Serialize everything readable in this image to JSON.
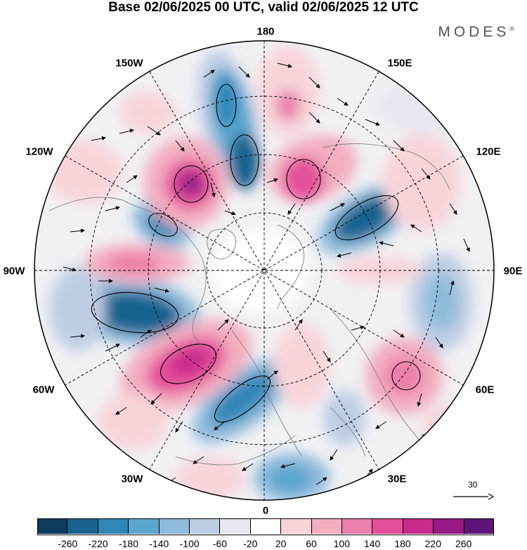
{
  "header": {
    "title": "Base 02/06/2025 00 UTC, valid 02/06/2025 12 UTC",
    "brand": "MODES",
    "brand_mark": "®"
  },
  "map": {
    "projection": "north-polar-stereographic",
    "longitude_labels": {
      "lon_180": "180",
      "lon_150w": "150W",
      "lon_150e": "150E",
      "lon_120w": "120W",
      "lon_120e": "120E",
      "lon_90w": "90W",
      "lon_90e": "90E",
      "lon_60w": "60W",
      "lon_60e": "60E",
      "lon_30w": "30W",
      "lon_30e": "30E",
      "lon_0": "0"
    },
    "wind_reference_vector": "30"
  },
  "colorbar": {
    "colors": [
      "#0f3b5c",
      "#19628f",
      "#2f86b8",
      "#5aa6cf",
      "#8fbbdc",
      "#bfcde4",
      "#e7e7f0",
      "#ffffff",
      "#f8d4d9",
      "#f3aec0",
      "#ec7fab",
      "#e4509a",
      "#c92a8c",
      "#971a86",
      "#5f1578"
    ],
    "ticks": [
      "-260",
      "-220",
      "-180",
      "-140",
      "-100",
      "-60",
      "-20",
      "20",
      "60",
      "100",
      "140",
      "180",
      "220",
      "260"
    ]
  }
}
